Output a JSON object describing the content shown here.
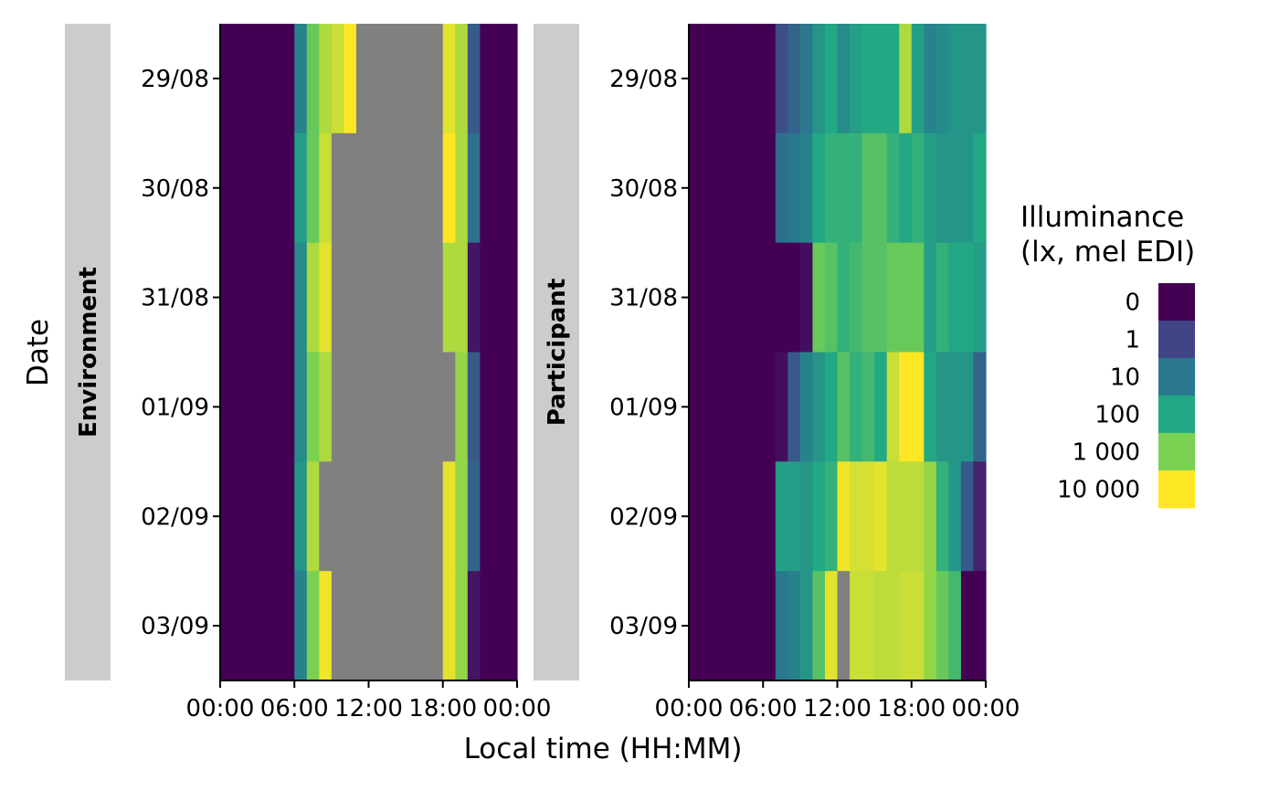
{
  "chart_data": {
    "type": "heatmap",
    "xlabel": "Local time (HH:MM)",
    "ylabel": "Date",
    "x_ticks": [
      "00:00",
      "06:00",
      "12:00",
      "18:00",
      "00:00"
    ],
    "dates": [
      "29/08",
      "30/08",
      "31/08",
      "01/09",
      "02/09",
      "03/09"
    ],
    "bin_hours": 1,
    "level_labels": [
      "0",
      "1",
      "10",
      "100",
      "1 000",
      "10 000"
    ],
    "missing_color": "#808080",
    "legend": {
      "title_lines": [
        "Illuminance",
        "(lx, mel EDI)"
      ],
      "position": "right",
      "colors": [
        "#440154",
        "#414487",
        "#2a788e",
        "#22a884",
        "#7ad151",
        "#fde725"
      ]
    },
    "panels": [
      {
        "strip": "Environment",
        "rows": [
          [
            0,
            0,
            0,
            0,
            0,
            0,
            2.2,
            3.8,
            4.4,
            4.6,
            5.0,
            null,
            null,
            null,
            null,
            null,
            null,
            null,
            4.8,
            4.4,
            1.4,
            0,
            0,
            0
          ],
          [
            0,
            0,
            0,
            0,
            0,
            0,
            2.8,
            3.8,
            4.6,
            null,
            null,
            null,
            null,
            null,
            null,
            null,
            null,
            null,
            5.0,
            4.4,
            1.8,
            0,
            0,
            0
          ],
          [
            0,
            0,
            0,
            0,
            0,
            0,
            2.4,
            4.4,
            4.8,
            null,
            null,
            null,
            null,
            null,
            null,
            null,
            null,
            null,
            4.4,
            4.4,
            0.3,
            0,
            0,
            0
          ],
          [
            0,
            0,
            0,
            0,
            0,
            0,
            2.4,
            4.0,
            4.4,
            null,
            null,
            null,
            null,
            null,
            null,
            null,
            null,
            null,
            null,
            4.2,
            1.4,
            0,
            0,
            0
          ],
          [
            0,
            0,
            0,
            0,
            0,
            0,
            2.6,
            4.4,
            null,
            null,
            null,
            null,
            null,
            null,
            null,
            null,
            null,
            null,
            4.8,
            4.2,
            1.6,
            0,
            0,
            0
          ],
          [
            0,
            0,
            0,
            0,
            0,
            0,
            2.2,
            4.0,
            4.9,
            null,
            null,
            null,
            null,
            null,
            null,
            null,
            null,
            null,
            4.8,
            4.2,
            0.3,
            0,
            0,
            0
          ]
        ]
      },
      {
        "strip": "Participant",
        "rows": [
          [
            0,
            0,
            0,
            0,
            0,
            0,
            0,
            1.2,
            1.6,
            2.0,
            2.6,
            3.0,
            2.4,
            2.8,
            3.0,
            3.0,
            3.0,
            4.4,
            2.8,
            2.2,
            2.4,
            2.6,
            2.6,
            2.6
          ],
          [
            0,
            0,
            0,
            0,
            0,
            0,
            0,
            1.8,
            2.0,
            2.2,
            3.0,
            3.2,
            3.2,
            3.2,
            3.6,
            3.6,
            3.2,
            3.0,
            3.2,
            2.8,
            2.6,
            2.6,
            2.6,
            3.0
          ],
          [
            0,
            0,
            0,
            0,
            0,
            0,
            0,
            0,
            0,
            0.2,
            3.8,
            3.6,
            3.2,
            3.4,
            3.6,
            3.6,
            3.8,
            3.8,
            3.8,
            2.8,
            3.2,
            3.0,
            3.0,
            2.8
          ],
          [
            0,
            0,
            0,
            0,
            0,
            0,
            0,
            0.2,
            1.4,
            2.2,
            2.6,
            3.0,
            3.6,
            3.2,
            3.4,
            3.0,
            4.6,
            5.0,
            5.0,
            3.0,
            2.6,
            2.6,
            2.6,
            1.6
          ],
          [
            0,
            0,
            0,
            0,
            0,
            0,
            0,
            2.8,
            2.8,
            2.6,
            3.0,
            3.2,
            4.9,
            4.7,
            4.7,
            4.8,
            4.5,
            4.5,
            4.5,
            4.2,
            3.2,
            2.6,
            1.4,
            0.5
          ],
          [
            0,
            0,
            0,
            0,
            0,
            0,
            0,
            2.0,
            2.2,
            2.6,
            3.6,
            4.8,
            null,
            4.6,
            4.6,
            4.5,
            4.5,
            4.6,
            4.6,
            4.2,
            3.8,
            3.4,
            0,
            0
          ]
        ]
      }
    ]
  }
}
